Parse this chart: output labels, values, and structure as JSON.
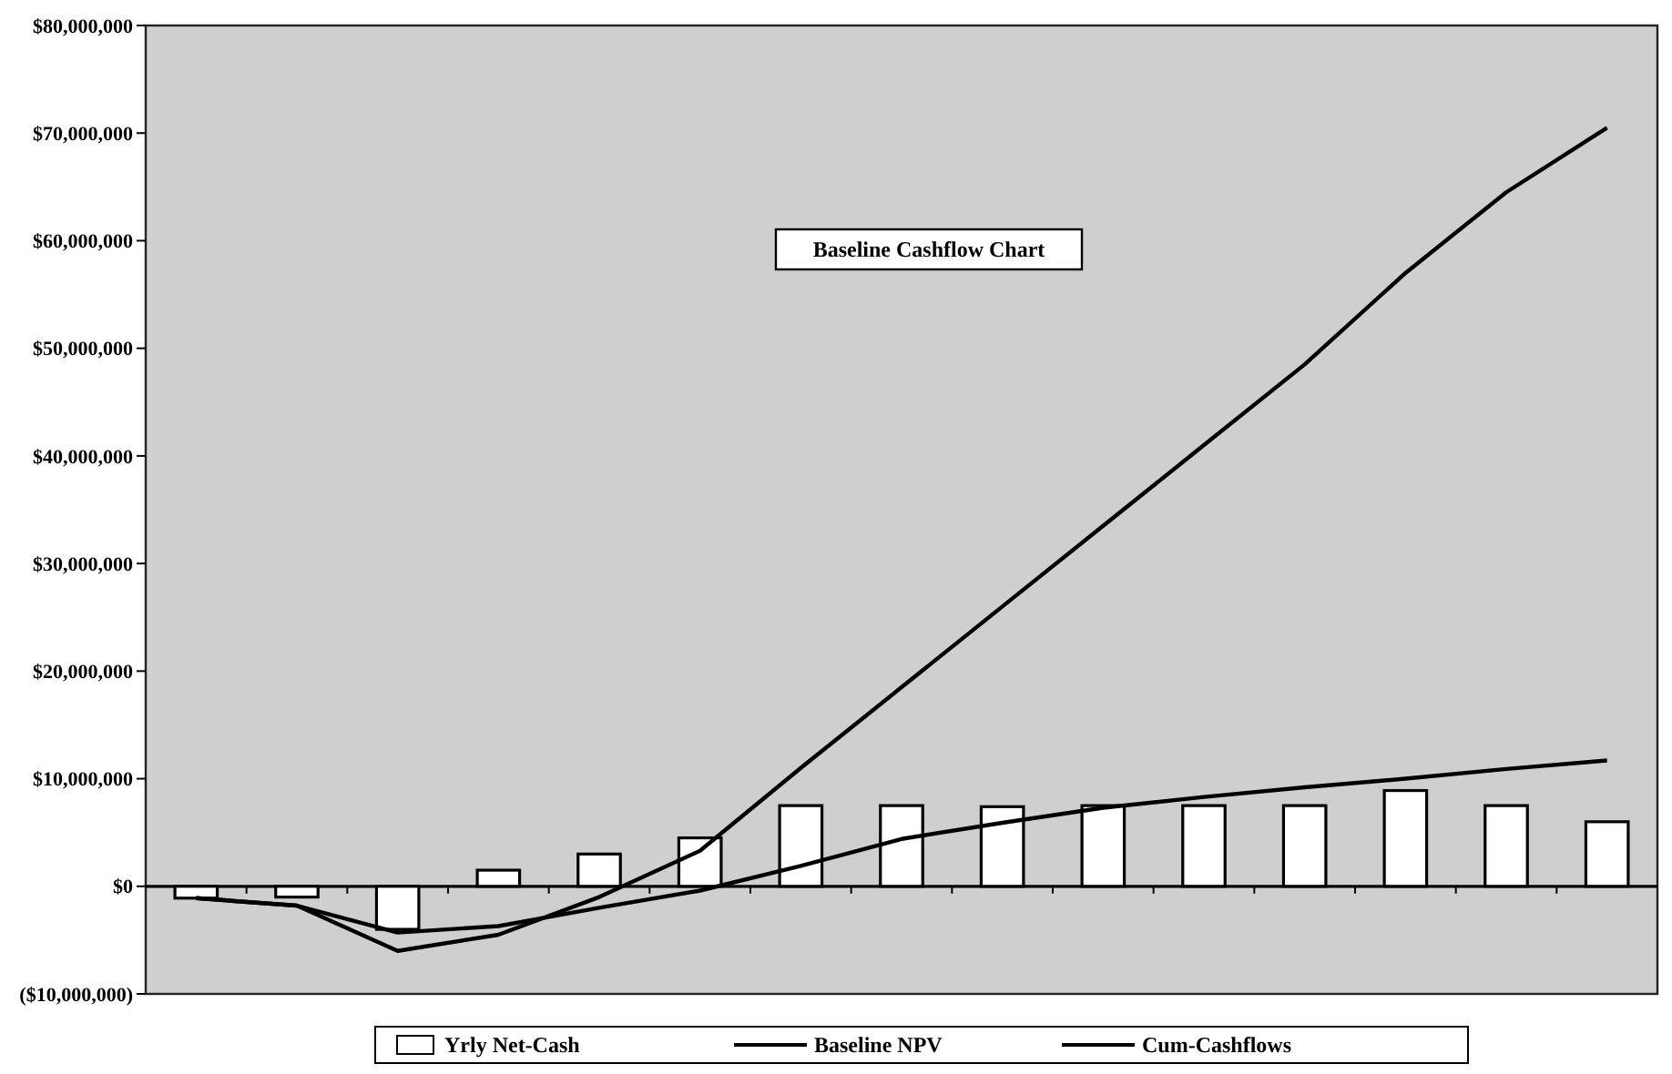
{
  "chart_data": {
    "type": "bar",
    "title": "Baseline Cashflow Chart",
    "categories": [
      null,
      null,
      null,
      null,
      null,
      null,
      null,
      null,
      null,
      null,
      null,
      null,
      null,
      null,
      null
    ],
    "series": [
      {
        "name": "Yrly Net-Cash",
        "color": "#ffffff",
        "values": [
          -1100000,
          -1000000,
          -4000000,
          1500000,
          3000000,
          4500000,
          7500000,
          7500000,
          7400000,
          7500000,
          7500000,
          7500000,
          8900000,
          7500000,
          6000000
        ]
      },
      {
        "name": "Baseline NPV",
        "type": "line",
        "color": "#000000",
        "values": [
          -1100000,
          -1800000,
          -4300000,
          -3700000,
          -2000000,
          -400000,
          1900000,
          4400000,
          5900000,
          7300000,
          8300000,
          9200000,
          10000000,
          10900000,
          11700000
        ]
      },
      {
        "name": "Cum-Cashflows",
        "type": "line",
        "color": "#000000",
        "values": [
          -1100000,
          -1800000,
          -6000000,
          -4500000,
          -1000000,
          3300000,
          11000000,
          18500000,
          26000000,
          33500000,
          41000000,
          48500000,
          57000000,
          64500000,
          70500000
        ]
      }
    ],
    "ylim": [
      -10000000,
      80000000
    ],
    "yticks": [
      {
        "value": -10000000,
        "label": "($10,000,000)"
      },
      {
        "value": 0,
        "label": "$0"
      },
      {
        "value": 10000000,
        "label": "$10,000,000"
      },
      {
        "value": 20000000,
        "label": "$20,000,000"
      },
      {
        "value": 30000000,
        "label": "$30,000,000"
      },
      {
        "value": 40000000,
        "label": "$40,000,000"
      },
      {
        "value": 50000000,
        "label": "$50,000,000"
      },
      {
        "value": 60000000,
        "label": "$60,000,000"
      },
      {
        "value": 70000000,
        "label": "$70,000,000"
      },
      {
        "value": 80000000,
        "label": "$80,000,000"
      }
    ],
    "legend": "bottom",
    "marker": "none",
    "line_style": "solid"
  }
}
